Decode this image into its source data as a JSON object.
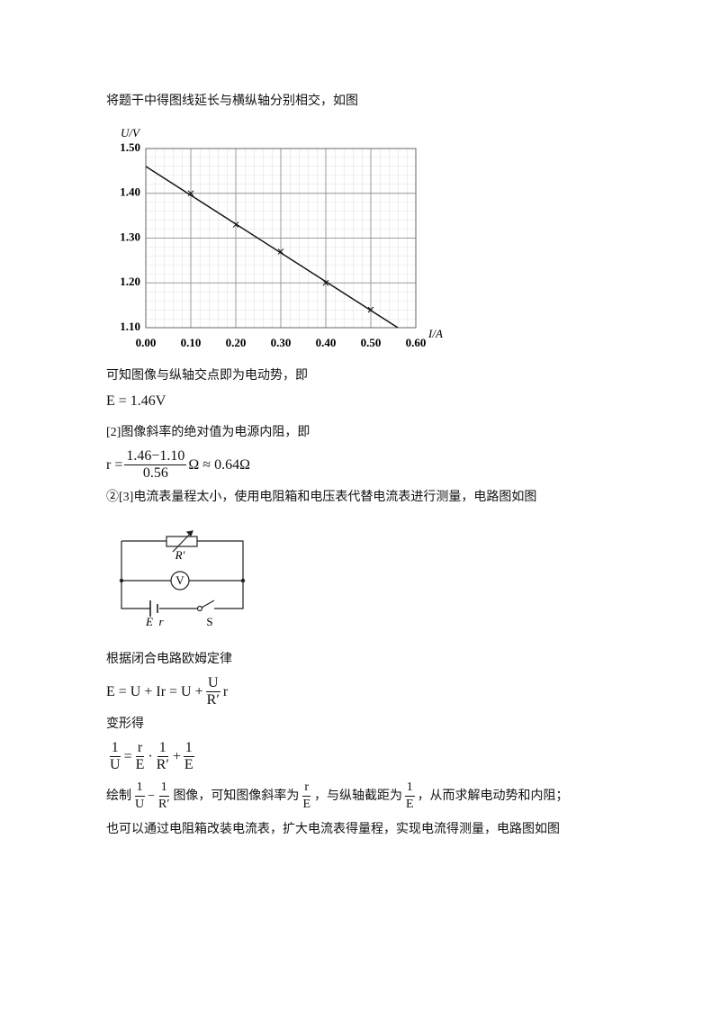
{
  "intro": "将题干中得图线延长与横纵轴分别相交，如图",
  "chart": {
    "type": "line",
    "y_label": "U/V",
    "x_label": "I/A",
    "xlim": [
      0,
      0.6
    ],
    "ylim": [
      1.1,
      1.5
    ],
    "xticks": [
      {
        "value": 0,
        "label": "0.00"
      },
      {
        "value": 0.1,
        "label": "0.10"
      },
      {
        "value": 0.2,
        "label": "0.20"
      },
      {
        "value": 0.3,
        "label": "0.30"
      },
      {
        "value": 0.4,
        "label": "0.40"
      },
      {
        "value": 0.5,
        "label": "0.50"
      },
      {
        "value": 0.6,
        "label": "0.60"
      }
    ],
    "yticks": [
      {
        "value": 1.1,
        "label": "1.10"
      },
      {
        "value": 1.2,
        "label": "1.20"
      },
      {
        "value": 1.3,
        "label": "1.30"
      },
      {
        "value": 1.4,
        "label": "1.40"
      },
      {
        "value": 1.5,
        "label": "1.50"
      }
    ],
    "grid": true,
    "points": {
      "x": [
        0.1,
        0.2,
        0.3,
        0.4,
        0.5
      ],
      "values": [
        1.4,
        1.33,
        1.27,
        1.2,
        1.14
      ]
    },
    "fit_line": {
      "x": [
        0,
        0.56
      ],
      "values": [
        1.46,
        1.1
      ]
    }
  },
  "text_intercept": "可知图像与纵轴交点即为电动势，即",
  "formula_E": [
    "E = 1.46V"
  ],
  "text_slope": "[2]图像斜率的绝对值为电源内阻，即",
  "formula_r": [
    "r =",
    {
      "num": "1.46−1.10",
      "den": "0.56"
    },
    "Ω ≈ 0.64Ω"
  ],
  "text_circuit": "②[3]电流表量程太小，使用电阻箱和电压表代替电流表进行测量，电路图如图",
  "circuit": {
    "labels": {
      "R": "R′",
      "V": "V",
      "E": "E",
      "r": "r",
      "S": "S"
    }
  },
  "text_law": "根据闭合电路欧姆定律",
  "formula_law": [
    "E = U + Ir = U +",
    {
      "num": "U",
      "den": "R′"
    },
    "r"
  ],
  "text_transform": "变形得",
  "formula_transform": [
    {
      "num": "1",
      "den": "U"
    },
    "=",
    {
      "num": "r",
      "den": "E"
    },
    "·",
    {
      "num": "1",
      "den": "R′"
    },
    "+",
    {
      "num": "1",
      "den": "E"
    }
  ],
  "text_plot": [
    "绘制",
    {
      "num": "1",
      "den": "U"
    },
    "−",
    {
      "num": "1",
      "den": "R′"
    },
    "图像，可知图像斜率为",
    {
      "num": "r",
      "den": "E"
    },
    "，与纵轴截距为",
    {
      "num": "1",
      "den": "E"
    },
    "，从而求解电动势和内阻；"
  ],
  "text_last": "也可以通过电阻箱改装电流表，扩大电流表得量程，实现电流得测量，电路图如图"
}
